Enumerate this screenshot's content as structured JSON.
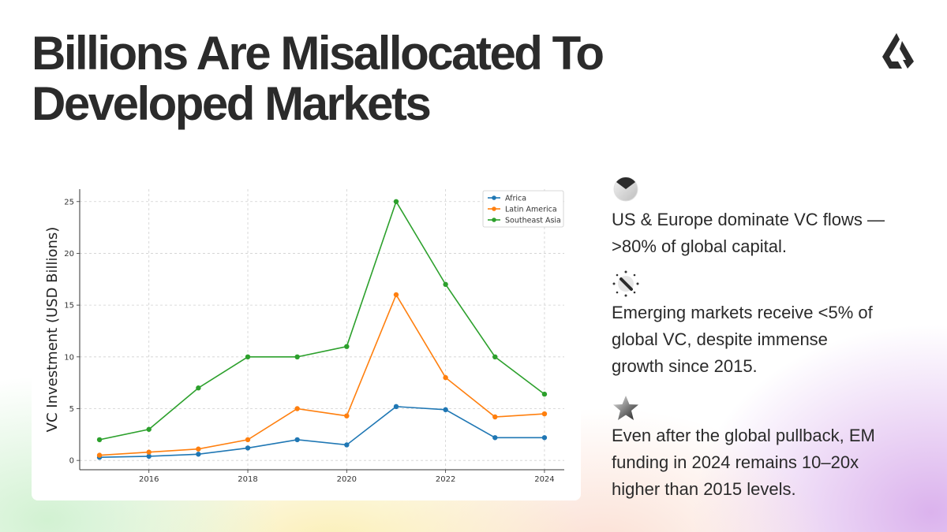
{
  "title": {
    "line1": "Billions Are Misallocated To",
    "line2": "Developed Markets"
  },
  "logo": {
    "icon": "brand-logo-icon",
    "color": "#2b2b2b"
  },
  "points": [
    {
      "icon": "pie-chart-icon",
      "lines": [
        "US & Europe dominate VC flows —",
        ">80% of global capital."
      ]
    },
    {
      "icon": "magic-wand-icon",
      "lines": [
        "Emerging markets receive <5% of",
        "global VC, despite immense",
        "growth since 2015."
      ]
    },
    {
      "icon": "star-icon",
      "lines": [
        "Even after the global pullback, EM",
        "funding in 2024 remains 10–20x",
        "higher than 2015 levels."
      ]
    }
  ],
  "chart_data": {
    "type": "line",
    "title": "",
    "xlabel": "",
    "ylabel": "VC Investment (USD Billions)",
    "x": [
      2015,
      2016,
      2017,
      2018,
      2019,
      2020,
      2021,
      2022,
      2023,
      2024
    ],
    "xticks": [
      "2016",
      "2018",
      "2020",
      "2022",
      "2024"
    ],
    "yticks": [
      "0",
      "5",
      "10",
      "15",
      "20",
      "25"
    ],
    "xlim": [
      2014.6,
      2024.4
    ],
    "ylim": [
      -0.9,
      26.2
    ],
    "grid": true,
    "legend_position": "top-right",
    "series": [
      {
        "name": "Africa",
        "color": "#1f77b4",
        "values": [
          0.3,
          0.4,
          0.6,
          1.2,
          2.0,
          1.5,
          5.2,
          4.9,
          2.2,
          2.2
        ]
      },
      {
        "name": "Latin America",
        "color": "#ff7f0e",
        "values": [
          0.5,
          0.8,
          1.1,
          2.0,
          5.0,
          4.3,
          16.0,
          8.0,
          4.2,
          4.5
        ]
      },
      {
        "name": "Southeast Asia",
        "color": "#2ca02c",
        "values": [
          2.0,
          3.0,
          7.0,
          10.0,
          10.0,
          11.0,
          25.0,
          17.0,
          10.0,
          6.4
        ]
      }
    ]
  }
}
